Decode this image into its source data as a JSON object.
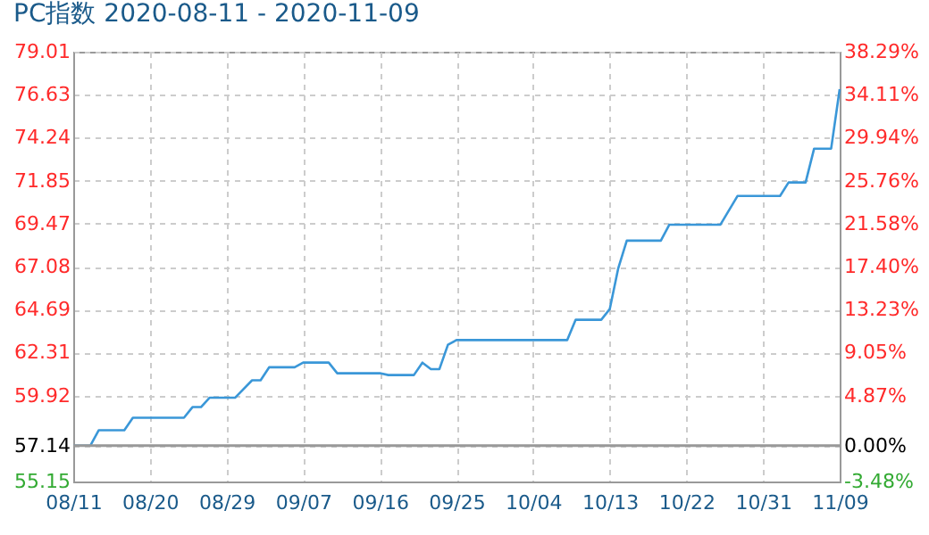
{
  "chart_data": {
    "type": "line",
    "title": "PC指数 2020-08-11 - 2020-11-09",
    "x": [
      "2020-08-11",
      "2020-08-13",
      "2020-08-14",
      "2020-08-17",
      "2020-08-18",
      "2020-08-24",
      "2020-08-25",
      "2020-08-26",
      "2020-08-27",
      "2020-08-30",
      "2020-09-01",
      "2020-09-02",
      "2020-09-03",
      "2020-09-06",
      "2020-09-07",
      "2020-09-10",
      "2020-09-11",
      "2020-09-16",
      "2020-09-17",
      "2020-09-20",
      "2020-09-21",
      "2020-09-22",
      "2020-09-23",
      "2020-09-24",
      "2020-09-25",
      "2020-10-08",
      "2020-10-09",
      "2020-10-12",
      "2020-10-13",
      "2020-10-14",
      "2020-10-15",
      "2020-10-19",
      "2020-10-20",
      "2020-10-26",
      "2020-10-28",
      "2020-11-02",
      "2020-11-03",
      "2020-11-05",
      "2020-11-06",
      "2020-11-08",
      "2020-11-09"
    ],
    "series": [
      {
        "color": "#3a97d8",
        "values": [
          57.14,
          57.14,
          58.0,
          58.0,
          58.69,
          58.69,
          59.28,
          59.28,
          59.8,
          59.8,
          60.77,
          60.77,
          61.49,
          61.49,
          61.75,
          61.75,
          61.16,
          61.16,
          61.06,
          61.06,
          61.75,
          61.39,
          61.39,
          62.74,
          63.0,
          63.0,
          64.13,
          64.13,
          64.72,
          66.99,
          68.52,
          68.52,
          69.41,
          69.41,
          71.0,
          71.0,
          71.75,
          71.75,
          73.63,
          73.63,
          76.93
        ]
      }
    ],
    "xlim": [
      "2020-08-11",
      "2020-11-09"
    ],
    "xticks": [
      {
        "value": "2020-08-11",
        "label": "08/11"
      },
      {
        "value": "2020-08-20",
        "label": "08/20"
      },
      {
        "value": "2020-08-29",
        "label": "08/29"
      },
      {
        "value": "2020-09-07",
        "label": "09/07"
      },
      {
        "value": "2020-09-16",
        "label": "09/16"
      },
      {
        "value": "2020-09-25",
        "label": "09/25"
      },
      {
        "value": "2020-10-04",
        "label": "10/04"
      },
      {
        "value": "2020-10-13",
        "label": "10/13"
      },
      {
        "value": "2020-10-22",
        "label": "10/22"
      },
      {
        "value": "2020-10-31",
        "label": "10/31"
      },
      {
        "value": "2020-11-09",
        "label": "11/09"
      }
    ],
    "ylim": [
      55.15,
      79.01
    ],
    "yticks": [
      55.15,
      57.14,
      59.92,
      62.31,
      64.69,
      67.08,
      69.47,
      71.85,
      74.24,
      76.63,
      79.01
    ],
    "y2lim": [
      -3.48,
      38.29
    ],
    "y2ticks": [
      {
        "value": -3.48,
        "label": "-3.48%"
      },
      {
        "value": 0,
        "label": "0.00%"
      },
      {
        "value": 4.87,
        "label": "4.87%"
      },
      {
        "value": 9.05,
        "label": "9.05%"
      },
      {
        "value": 13.23,
        "label": "13.23%"
      },
      {
        "value": 17.4,
        "label": "17.40%"
      },
      {
        "value": 21.58,
        "label": "21.58%"
      },
      {
        "value": 25.76,
        "label": "25.76%"
      },
      {
        "value": 29.94,
        "label": "29.94%"
      },
      {
        "value": 34.11,
        "label": "34.11%"
      },
      {
        "value": 38.29,
        "label": "38.29%"
      }
    ],
    "ref_lines": [
      {
        "axis": "y2",
        "value": 0,
        "color": "#999999"
      }
    ],
    "grid": true,
    "marker": "none",
    "line_style": "solid"
  }
}
